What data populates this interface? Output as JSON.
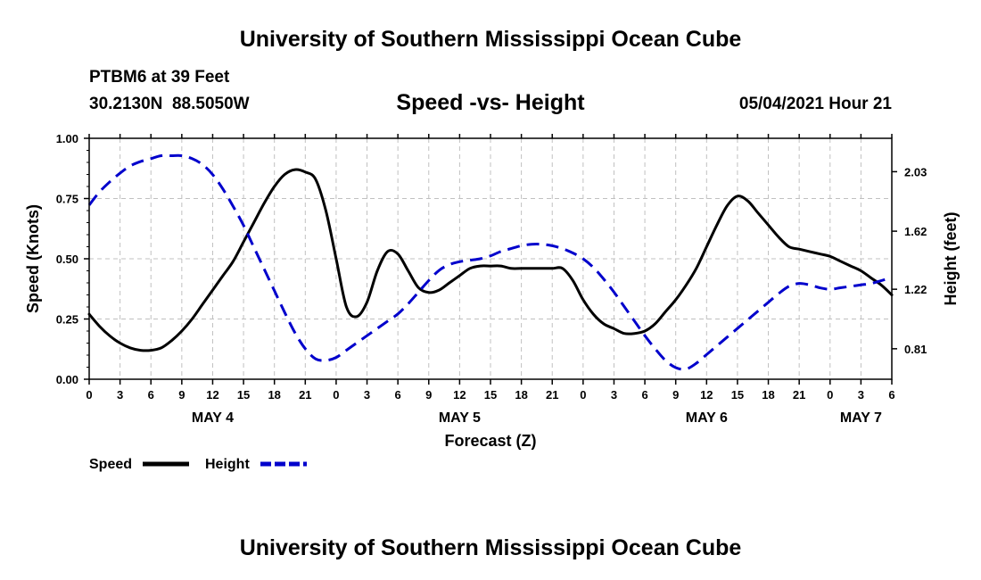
{
  "header": {
    "title": "University of Southern Mississippi Ocean Cube",
    "station": "PTBM6 at 39 Feet",
    "coords": "30.2130N  88.5050W",
    "chart_title": "Speed -vs- Height",
    "date": "05/04/2021 Hour 21"
  },
  "footer": {
    "title": "University of Southern Mississippi Ocean Cube"
  },
  "colors": {
    "speed": "#000000",
    "height": "#0000cc",
    "grid": "#c0c0c0"
  },
  "chart_data": {
    "type": "line",
    "title": "Speed -vs- Height",
    "xlabel": "Forecast (Z)",
    "ylabel": "Speed (Knots)",
    "y2label": "Height (feet)",
    "xlim": [
      0,
      78
    ],
    "ylim": [
      0,
      1.0
    ],
    "y2lim": [
      0.6,
      2.26
    ],
    "x_ticks": [
      0,
      3,
      6,
      9,
      12,
      15,
      18,
      21,
      24,
      27,
      30,
      33,
      36,
      39,
      42,
      45,
      48,
      51,
      54,
      57,
      60,
      63,
      66,
      69,
      72,
      75,
      78
    ],
    "x_tick_labels": [
      "0",
      "3",
      "6",
      "9",
      "12",
      "15",
      "18",
      "21",
      "0",
      "3",
      "6",
      "9",
      "12",
      "15",
      "18",
      "21",
      "0",
      "3",
      "6",
      "9",
      "12",
      "15",
      "18",
      "21",
      "0",
      "3",
      "6"
    ],
    "y_ticks": [
      0.0,
      0.25,
      0.5,
      0.75,
      1.0
    ],
    "y_tick_labels": [
      "0.00",
      "0.25",
      "0.50",
      "0.75",
      "1.00"
    ],
    "y2_ticks": [
      0.81,
      1.22,
      1.62,
      2.03
    ],
    "y2_tick_labels": [
      "0.81",
      "1.22",
      "1.62",
      "2.03"
    ],
    "day_labels": [
      {
        "label": "MAY 4",
        "x": 12
      },
      {
        "label": "MAY 5",
        "x": 36
      },
      {
        "label": "MAY 6",
        "x": 60
      },
      {
        "label": "MAY 7",
        "x": 75
      }
    ],
    "grid": true,
    "series": [
      {
        "name": "Speed",
        "axis": "left",
        "style": "solid",
        "x": [
          0,
          1,
          2,
          3,
          4,
          5,
          6,
          7,
          8,
          9,
          10,
          11,
          12,
          13,
          14,
          15,
          16,
          17,
          18,
          19,
          20,
          21,
          22,
          23,
          24,
          25,
          26,
          27,
          28,
          29,
          30,
          31,
          32,
          33,
          34,
          35,
          36,
          37,
          38,
          39,
          40,
          41,
          42,
          43,
          44,
          45,
          46,
          47,
          48,
          49,
          50,
          51,
          52,
          53,
          54,
          55,
          56,
          57,
          58,
          59,
          60,
          61,
          62,
          63,
          64,
          65,
          66,
          67,
          68,
          69,
          70,
          71,
          72,
          73,
          74,
          75,
          76,
          77,
          78
        ],
        "values": [
          0.27,
          0.22,
          0.18,
          0.15,
          0.13,
          0.12,
          0.12,
          0.13,
          0.16,
          0.2,
          0.25,
          0.31,
          0.37,
          0.43,
          0.49,
          0.57,
          0.65,
          0.73,
          0.8,
          0.85,
          0.87,
          0.86,
          0.83,
          0.7,
          0.5,
          0.3,
          0.26,
          0.32,
          0.45,
          0.53,
          0.52,
          0.45,
          0.38,
          0.36,
          0.37,
          0.4,
          0.43,
          0.46,
          0.47,
          0.47,
          0.47,
          0.46,
          0.46,
          0.46,
          0.46,
          0.46,
          0.46,
          0.41,
          0.33,
          0.27,
          0.23,
          0.21,
          0.19,
          0.19,
          0.2,
          0.23,
          0.28,
          0.33,
          0.39,
          0.46,
          0.55,
          0.64,
          0.72,
          0.76,
          0.74,
          0.69,
          0.64,
          0.59,
          0.55,
          0.54,
          0.53,
          0.52,
          0.51,
          0.49,
          0.47,
          0.45,
          0.42,
          0.39,
          0.35
        ]
      },
      {
        "name": "Height",
        "axis": "right",
        "style": "dashed",
        "x": [
          0,
          1,
          2,
          3,
          4,
          5,
          6,
          7,
          8,
          9,
          10,
          11,
          12,
          13,
          14,
          15,
          16,
          17,
          18,
          19,
          20,
          21,
          22,
          23,
          24,
          25,
          26,
          27,
          28,
          29,
          30,
          31,
          32,
          33,
          34,
          35,
          36,
          37,
          38,
          39,
          40,
          41,
          42,
          43,
          44,
          45,
          46,
          47,
          48,
          49,
          50,
          51,
          52,
          53,
          54,
          55,
          56,
          57,
          58,
          59,
          60,
          61,
          62,
          63,
          64,
          65,
          66,
          67,
          68,
          69,
          70,
          71,
          72,
          73,
          74,
          75,
          76,
          77,
          78
        ],
        "values": [
          1.8,
          1.89,
          1.96,
          2.02,
          2.07,
          2.1,
          2.12,
          2.14,
          2.14,
          2.14,
          2.12,
          2.08,
          2.01,
          1.91,
          1.79,
          1.66,
          1.51,
          1.36,
          1.21,
          1.06,
          0.92,
          0.81,
          0.74,
          0.73,
          0.75,
          0.8,
          0.85,
          0.9,
          0.95,
          1.0,
          1.05,
          1.12,
          1.2,
          1.28,
          1.35,
          1.39,
          1.41,
          1.42,
          1.43,
          1.45,
          1.48,
          1.5,
          1.52,
          1.53,
          1.53,
          1.52,
          1.5,
          1.47,
          1.43,
          1.37,
          1.29,
          1.2,
          1.1,
          1.0,
          0.9,
          0.81,
          0.73,
          0.68,
          0.67,
          0.71,
          0.77,
          0.83,
          0.89,
          0.95,
          1.01,
          1.07,
          1.13,
          1.19,
          1.24,
          1.26,
          1.25,
          1.23,
          1.22,
          1.23,
          1.24,
          1.25,
          1.26,
          1.28,
          1.3
        ]
      }
    ],
    "legend": [
      {
        "label": "Speed",
        "style": "solid"
      },
      {
        "label": "Height",
        "style": "dashed"
      }
    ]
  }
}
